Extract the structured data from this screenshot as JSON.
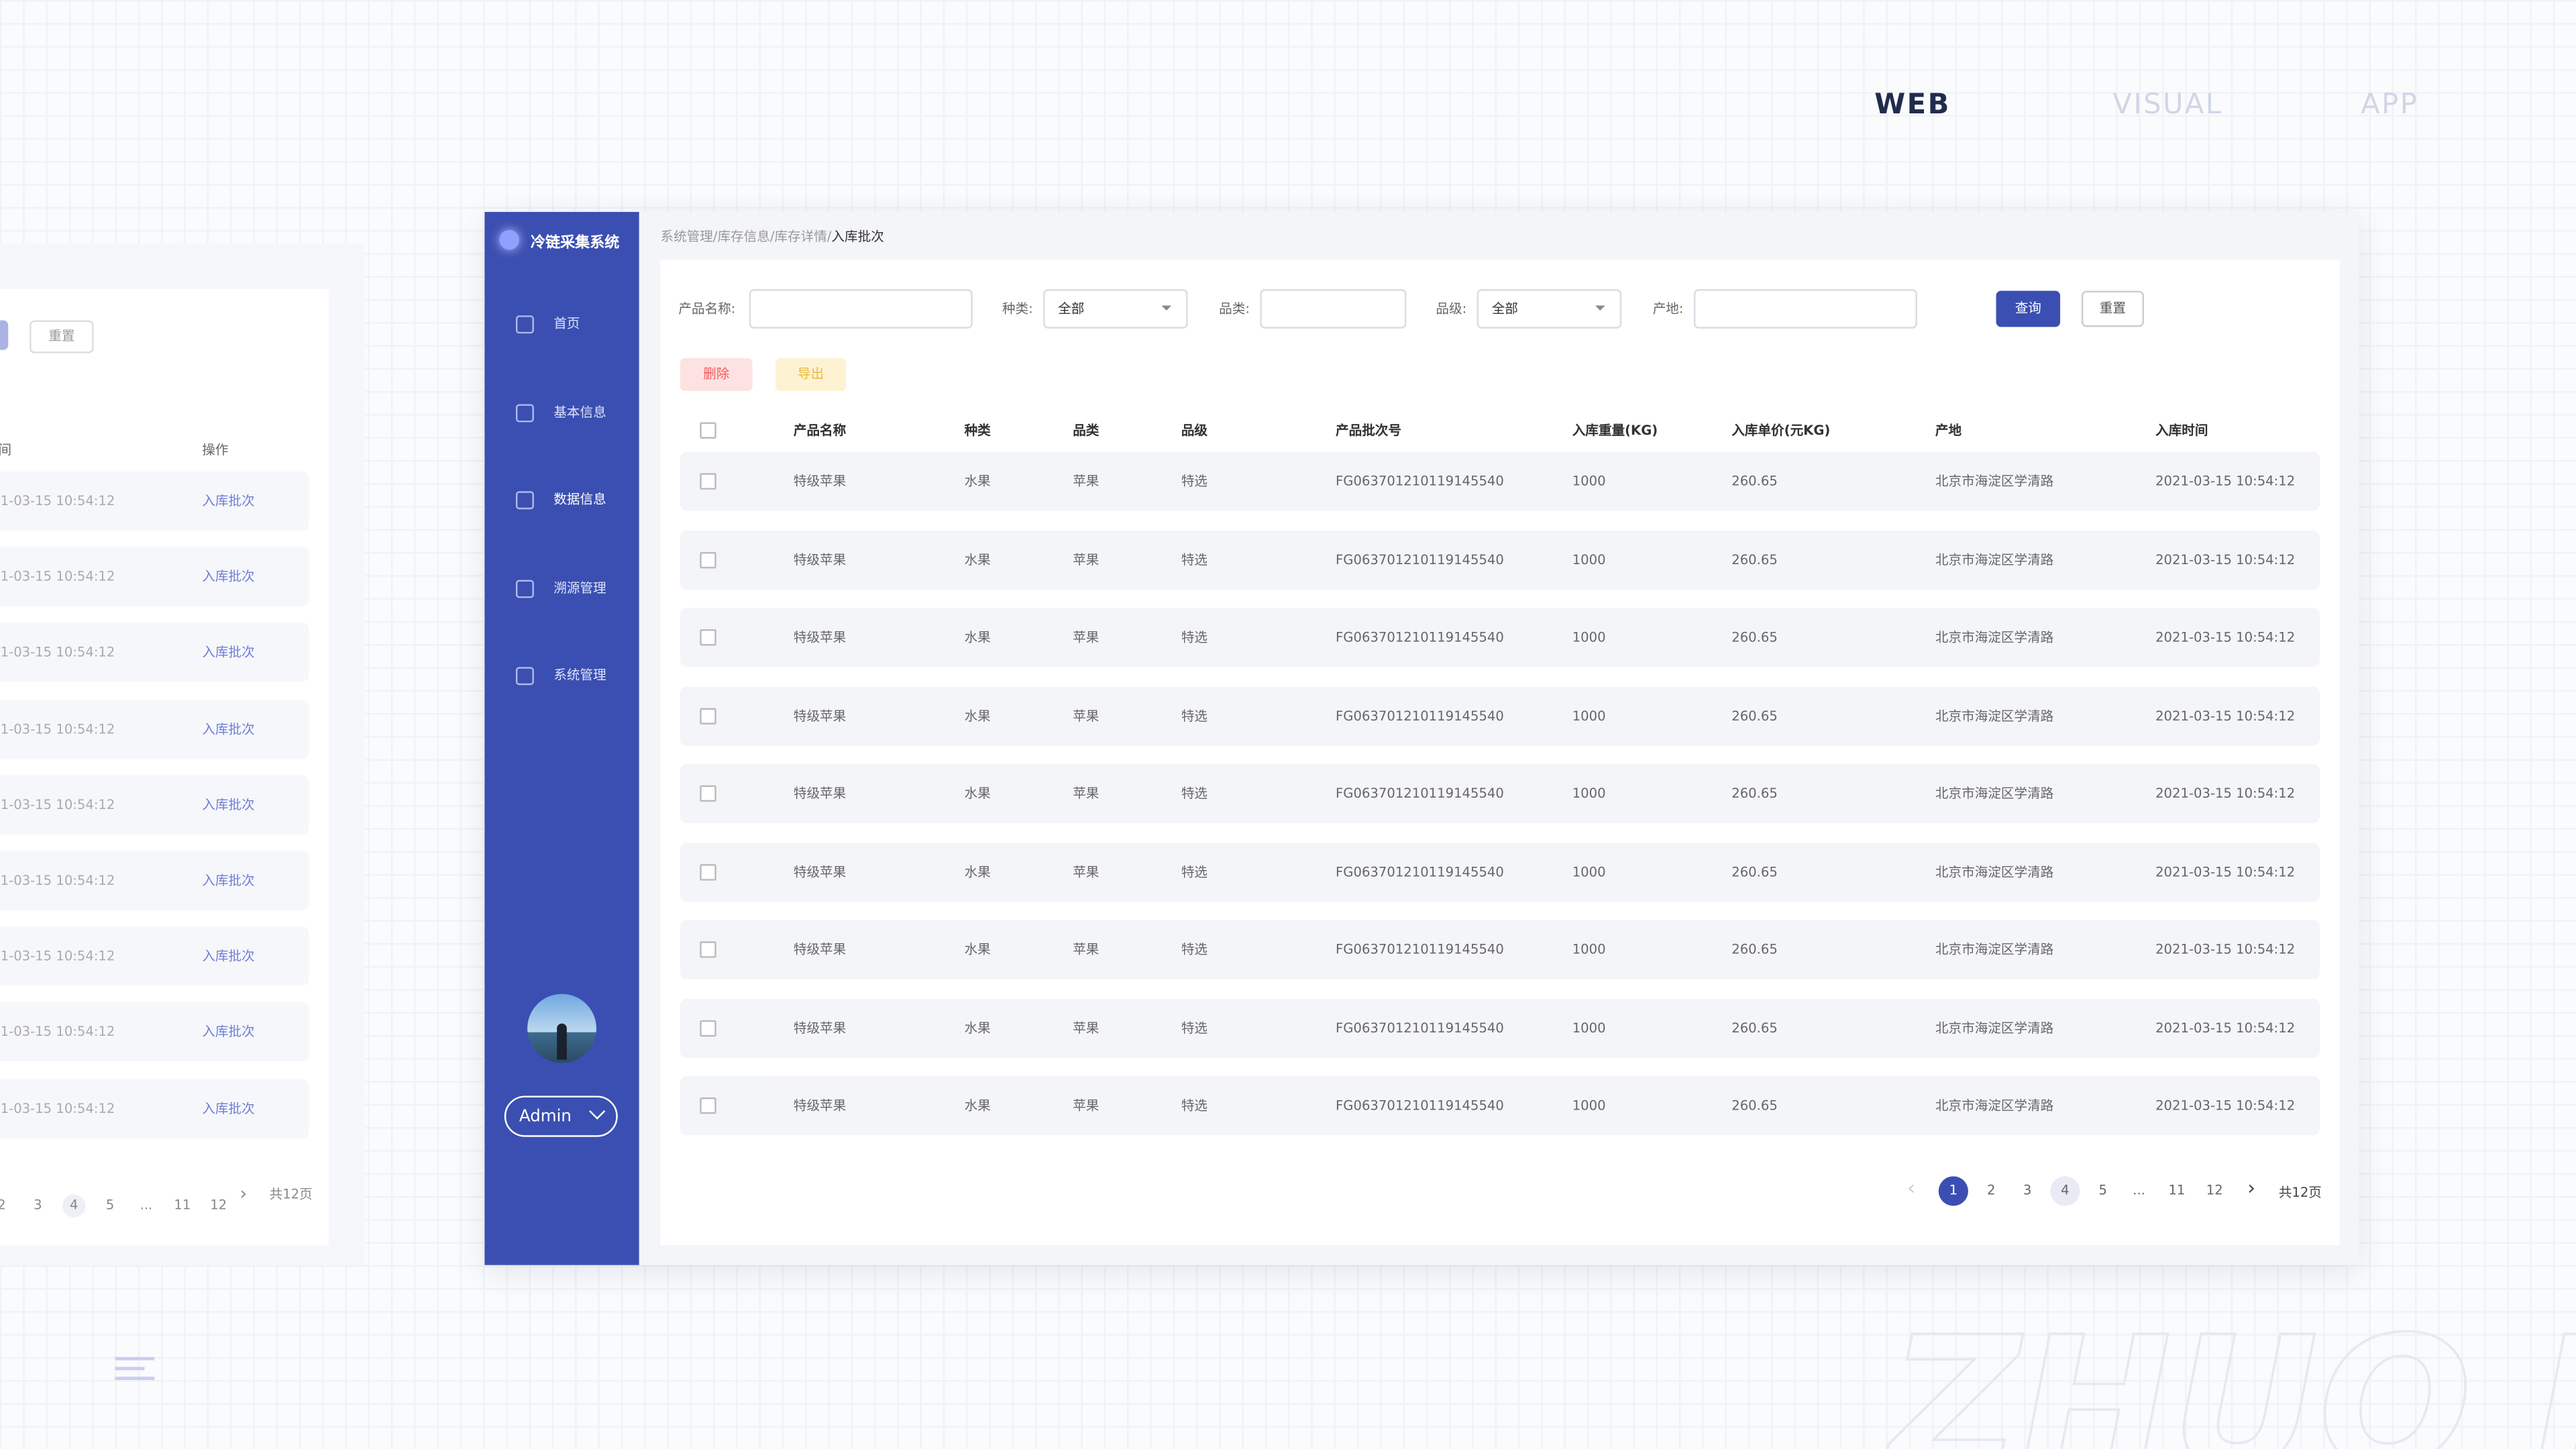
{
  "nav": [
    "WEB",
    "VISUAL",
    "APP"
  ],
  "app": {
    "title": "冷链采集系统",
    "menu": [
      "首页",
      "基本信息",
      "数据信息",
      "溯源管理",
      "系统管理"
    ],
    "user": "Admin"
  },
  "breadcrumb": {
    "path": "系统管理/库存信息/库存详情/",
    "current": "入库批次"
  },
  "filters": [
    {
      "label": "产品名称:"
    },
    {
      "label": "种类:",
      "value": "全部"
    },
    {
      "label": "品类:"
    },
    {
      "label": "品级:",
      "value": "全部"
    },
    {
      "label": "产地:"
    }
  ],
  "buttons": {
    "query": "查询",
    "reset": "重置",
    "delete": "删除",
    "export": "导出"
  },
  "table": {
    "headers": [
      "产品名称",
      "种类",
      "品类",
      "品级",
      "产品批次号",
      "入库重量(KG)",
      "入库单价(元KG)",
      "产地",
      "入库时间"
    ],
    "rows": [
      [
        "特级苹果",
        "水果",
        "苹果",
        "特选",
        "FG063701210119145540",
        "1000",
        "260.65",
        "北京市海淀区学清路",
        "2021-03-15 10:54:12"
      ],
      [
        "特级苹果",
        "水果",
        "苹果",
        "特选",
        "FG063701210119145540",
        "1000",
        "260.65",
        "北京市海淀区学清路",
        "2021-03-15 10:54:12"
      ],
      [
        "特级苹果",
        "水果",
        "苹果",
        "特选",
        "FG063701210119145540",
        "1000",
        "260.65",
        "北京市海淀区学清路",
        "2021-03-15 10:54:12"
      ],
      [
        "特级苹果",
        "水果",
        "苹果",
        "特选",
        "FG063701210119145540",
        "1000",
        "260.65",
        "北京市海淀区学清路",
        "2021-03-15 10:54:12"
      ],
      [
        "特级苹果",
        "水果",
        "苹果",
        "特选",
        "FG063701210119145540",
        "1000",
        "260.65",
        "北京市海淀区学清路",
        "2021-03-15 10:54:12"
      ],
      [
        "特级苹果",
        "水果",
        "苹果",
        "特选",
        "FG063701210119145540",
        "1000",
        "260.65",
        "北京市海淀区学清路",
        "2021-03-15 10:54:12"
      ],
      [
        "特级苹果",
        "水果",
        "苹果",
        "特选",
        "FG063701210119145540",
        "1000",
        "260.65",
        "北京市海淀区学清路",
        "2021-03-15 10:54:12"
      ],
      [
        "特级苹果",
        "水果",
        "苹果",
        "特选",
        "FG063701210119145540",
        "1000",
        "260.65",
        "北京市海淀区学清路",
        "2021-03-15 10:54:12"
      ],
      [
        "特级苹果",
        "水果",
        "苹果",
        "特选",
        "FG063701210119145540",
        "1000",
        "260.65",
        "北京市海淀区学清路",
        "2021-03-15 10:54:12"
      ]
    ]
  },
  "pagination": {
    "pages": [
      "1",
      "2",
      "3",
      "4",
      "5",
      "...",
      "11",
      "12"
    ],
    "total": "共12页"
  },
  "ghost": {
    "header": "入库时间",
    "action_header": "操作",
    "action": "入库批次"
  },
  "watermark": "ZHUO IIE"
}
